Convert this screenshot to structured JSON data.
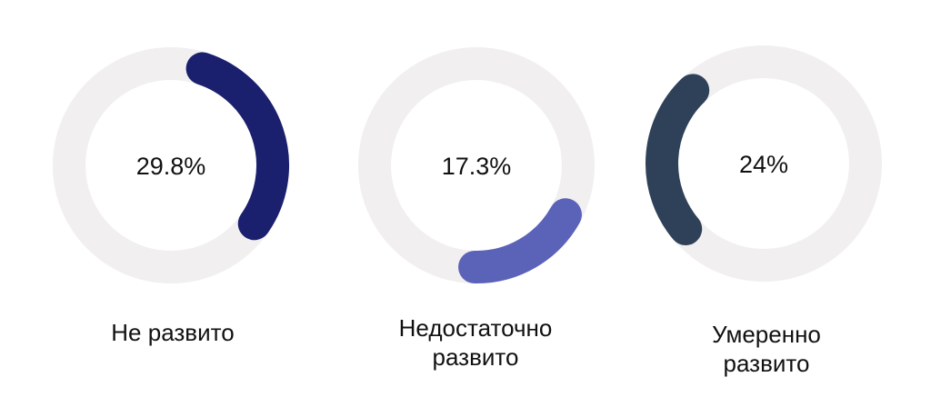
{
  "chart_data": [
    {
      "type": "donut",
      "value_label": "29.8%",
      "value": 29.8,
      "category": "Не развито",
      "arc_color": "#1a1f6e",
      "track_color": "#f1eff0",
      "arc_start_deg": 18,
      "arc_end_deg": 125
    },
    {
      "type": "donut",
      "value_label": "17.3%",
      "value": 17.3,
      "category": "Недостаточно развито",
      "arc_color": "#5b63b9",
      "track_color": "#f1eff0",
      "arc_start_deg": 119,
      "arc_end_deg": 181
    },
    {
      "type": "donut",
      "value_label": "24%",
      "value": 24,
      "category": "Умеренно развито",
      "arc_color": "#2f4158",
      "track_color": "#f1eff0",
      "arc_start_deg": 230,
      "arc_end_deg": 316
    }
  ]
}
